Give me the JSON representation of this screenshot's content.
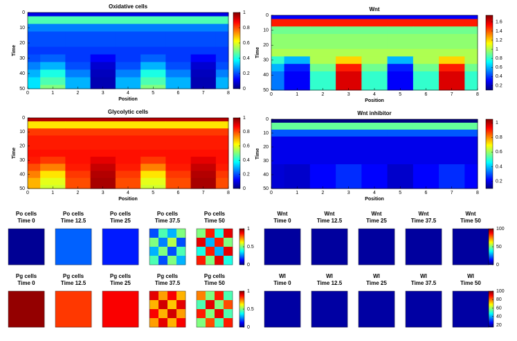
{
  "chart_data": [
    {
      "type": "heatmap",
      "title": "Oxidative cells",
      "xlabel": "Position",
      "ylabel": "Time",
      "colormap": "jet",
      "x": [
        0,
        1,
        2,
        3,
        4,
        5,
        6,
        7,
        8
      ],
      "y": [
        0,
        5,
        10,
        15,
        20,
        25,
        30,
        35,
        40,
        45,
        50
      ],
      "xlim": [
        0,
        8
      ],
      "ylim": [
        50,
        0
      ],
      "xticks": [
        0,
        1,
        2,
        3,
        4,
        5,
        6,
        7,
        8
      ],
      "yticks": [
        0,
        10,
        20,
        30,
        40,
        50
      ],
      "clim": [
        0,
        1
      ],
      "cticks": [
        0,
        0.2,
        0.4,
        0.6,
        0.8,
        1
      ],
      "z": [
        [
          0.1,
          0.1,
          0.1,
          0.1,
          0.1,
          0.1,
          0.1,
          0.1,
          0.1
        ],
        [
          0.45,
          0.45,
          0.45,
          0.45,
          0.45,
          0.45,
          0.45,
          0.45,
          0.45
        ],
        [
          0.25,
          0.25,
          0.25,
          0.25,
          0.25,
          0.25,
          0.25,
          0.25,
          0.25
        ],
        [
          0.2,
          0.2,
          0.2,
          0.2,
          0.2,
          0.2,
          0.2,
          0.2,
          0.2
        ],
        [
          0.2,
          0.2,
          0.2,
          0.2,
          0.2,
          0.2,
          0.2,
          0.2,
          0.2
        ],
        [
          0.18,
          0.18,
          0.18,
          0.18,
          0.18,
          0.18,
          0.18,
          0.18,
          0.18
        ],
        [
          0.2,
          0.22,
          0.18,
          0.12,
          0.18,
          0.22,
          0.18,
          0.12,
          0.18
        ],
        [
          0.25,
          0.3,
          0.2,
          0.08,
          0.2,
          0.3,
          0.2,
          0.08,
          0.2
        ],
        [
          0.3,
          0.4,
          0.25,
          0.06,
          0.25,
          0.4,
          0.25,
          0.06,
          0.25
        ],
        [
          0.35,
          0.45,
          0.3,
          0.05,
          0.3,
          0.45,
          0.3,
          0.05,
          0.3
        ],
        [
          0.35,
          0.5,
          0.3,
          0.05,
          0.3,
          0.5,
          0.3,
          0.05,
          0.3
        ]
      ]
    },
    {
      "type": "heatmap",
      "title": "Wnt",
      "xlabel": "Position",
      "ylabel": "Time",
      "colormap": "jet",
      "x": [
        0,
        1,
        2,
        3,
        4,
        5,
        6,
        7,
        8
      ],
      "y": [
        0,
        5,
        10,
        15,
        20,
        25,
        30,
        35,
        40,
        45,
        50
      ],
      "xlim": [
        0,
        8
      ],
      "ylim": [
        50,
        0
      ],
      "xticks": [
        0,
        1,
        2,
        3,
        4,
        5,
        6,
        7,
        8
      ],
      "yticks": [
        0,
        10,
        20,
        30,
        40,
        50
      ],
      "clim": [
        0.1,
        1.75
      ],
      "cticks": [
        0.2,
        0.4,
        0.6,
        0.8,
        1,
        1.2,
        1.4,
        1.6
      ],
      "z": [
        [
          0.3,
          0.3,
          0.3,
          0.3,
          0.3,
          0.3,
          0.3,
          0.3,
          0.3
        ],
        [
          1.5,
          1.5,
          1.5,
          1.5,
          1.5,
          1.5,
          1.5,
          1.5,
          1.5
        ],
        [
          0.9,
          0.9,
          0.9,
          0.9,
          0.9,
          0.9,
          0.9,
          0.9,
          0.9
        ],
        [
          0.95,
          0.95,
          0.95,
          0.95,
          0.95,
          0.95,
          0.95,
          0.95,
          0.95
        ],
        [
          0.95,
          0.95,
          0.95,
          0.95,
          0.95,
          0.95,
          0.95,
          0.95,
          0.95
        ],
        [
          1.0,
          1.0,
          1.0,
          1.0,
          1.0,
          1.0,
          1.0,
          1.0,
          1.0
        ],
        [
          0.8,
          0.6,
          1.0,
          1.2,
          1.0,
          0.6,
          1.0,
          1.2,
          1.0
        ],
        [
          0.6,
          0.35,
          0.9,
          1.5,
          0.9,
          0.35,
          0.9,
          1.5,
          0.9
        ],
        [
          0.5,
          0.3,
          0.8,
          1.6,
          0.8,
          0.3,
          0.8,
          1.6,
          0.8
        ],
        [
          0.5,
          0.3,
          0.8,
          1.6,
          0.8,
          0.3,
          0.8,
          1.6,
          0.8
        ],
        [
          0.5,
          0.3,
          0.8,
          1.6,
          0.8,
          0.3,
          0.8,
          1.6,
          0.8
        ]
      ]
    },
    {
      "type": "heatmap",
      "title": "Glycolytic cells",
      "xlabel": "Position",
      "ylabel": "Time",
      "colormap": "jet",
      "x": [
        0,
        1,
        2,
        3,
        4,
        5,
        6,
        7,
        8
      ],
      "y": [
        0,
        5,
        10,
        15,
        20,
        25,
        30,
        35,
        40,
        45,
        50
      ],
      "xlim": [
        0,
        8
      ],
      "ylim": [
        50,
        0
      ],
      "xticks": [
        0,
        1,
        2,
        3,
        4,
        5,
        6,
        7,
        8
      ],
      "yticks": [
        0,
        10,
        20,
        30,
        40,
        50
      ],
      "clim": [
        0,
        1
      ],
      "cticks": [
        0,
        0.2,
        0.4,
        0.6,
        0.8,
        1
      ],
      "z": [
        [
          0.95,
          0.95,
          0.95,
          0.95,
          0.95,
          0.95,
          0.95,
          0.95,
          0.95
        ],
        [
          0.65,
          0.65,
          0.65,
          0.65,
          0.65,
          0.65,
          0.65,
          0.65,
          0.65
        ],
        [
          0.82,
          0.82,
          0.82,
          0.82,
          0.82,
          0.82,
          0.82,
          0.82,
          0.82
        ],
        [
          0.85,
          0.85,
          0.85,
          0.85,
          0.85,
          0.85,
          0.85,
          0.85,
          0.85
        ],
        [
          0.85,
          0.85,
          0.85,
          0.85,
          0.85,
          0.85,
          0.85,
          0.85,
          0.85
        ],
        [
          0.86,
          0.86,
          0.86,
          0.86,
          0.86,
          0.86,
          0.86,
          0.86,
          0.86
        ],
        [
          0.85,
          0.82,
          0.86,
          0.9,
          0.86,
          0.82,
          0.86,
          0.9,
          0.86
        ],
        [
          0.8,
          0.75,
          0.85,
          0.93,
          0.85,
          0.75,
          0.85,
          0.93,
          0.85
        ],
        [
          0.75,
          0.65,
          0.82,
          0.95,
          0.82,
          0.65,
          0.82,
          0.95,
          0.82
        ],
        [
          0.7,
          0.6,
          0.8,
          0.96,
          0.8,
          0.6,
          0.8,
          0.96,
          0.8
        ],
        [
          0.7,
          0.58,
          0.8,
          0.96,
          0.8,
          0.58,
          0.8,
          0.96,
          0.8
        ]
      ]
    },
    {
      "type": "heatmap",
      "title": "Wnt inhibitor",
      "xlabel": "Position",
      "ylabel": "Time",
      "colormap": "jet",
      "x": [
        0,
        1,
        2,
        3,
        4,
        5,
        6,
        7,
        8
      ],
      "y": [
        0,
        5,
        10,
        15,
        20,
        25,
        30,
        35,
        40,
        45,
        50
      ],
      "xlim": [
        0,
        8
      ],
      "ylim": [
        50,
        0
      ],
      "xticks": [
        0,
        1,
        2,
        3,
        4,
        5,
        6,
        7,
        8
      ],
      "yticks": [
        0,
        10,
        20,
        30,
        40,
        50
      ],
      "clim": [
        0.1,
        1.05
      ],
      "cticks": [
        0.2,
        0.4,
        0.6,
        0.8,
        1
      ],
      "z": [
        [
          0.1,
          0.1,
          0.1,
          0.1,
          0.1,
          0.1,
          0.1,
          0.1,
          0.1
        ],
        [
          0.55,
          0.55,
          0.55,
          0.55,
          0.55,
          0.55,
          0.55,
          0.55,
          0.55
        ],
        [
          0.3,
          0.3,
          0.3,
          0.3,
          0.3,
          0.3,
          0.3,
          0.3,
          0.3
        ],
        [
          0.2,
          0.2,
          0.2,
          0.2,
          0.2,
          0.2,
          0.2,
          0.2,
          0.2
        ],
        [
          0.2,
          0.2,
          0.2,
          0.2,
          0.2,
          0.2,
          0.2,
          0.2,
          0.2
        ],
        [
          0.2,
          0.2,
          0.2,
          0.2,
          0.2,
          0.2,
          0.2,
          0.2,
          0.2
        ],
        [
          0.2,
          0.2,
          0.2,
          0.2,
          0.2,
          0.2,
          0.2,
          0.2,
          0.2
        ],
        [
          0.18,
          0.17,
          0.22,
          0.26,
          0.22,
          0.17,
          0.22,
          0.26,
          0.22
        ],
        [
          0.18,
          0.17,
          0.22,
          0.26,
          0.22,
          0.17,
          0.22,
          0.26,
          0.22
        ],
        [
          0.18,
          0.17,
          0.22,
          0.26,
          0.22,
          0.17,
          0.22,
          0.26,
          0.22
        ],
        [
          0.18,
          0.17,
          0.22,
          0.26,
          0.22,
          0.17,
          0.22,
          0.26,
          0.22
        ]
      ]
    },
    {
      "type": "heatmap-row",
      "colormap": "jet",
      "clim": [
        0,
        1
      ],
      "cticks": [
        0,
        0.5,
        1
      ],
      "panels": [
        {
          "title": [
            "Po cells",
            "Time 0"
          ],
          "z": [
            [
              0.02
            ]
          ]
        },
        {
          "title": [
            "Po cells",
            "Time 12.5"
          ],
          "z": [
            [
              0.22
            ]
          ]
        },
        {
          "title": [
            "Po cells",
            "Time 25"
          ],
          "z": [
            [
              0.15
            ]
          ]
        },
        {
          "title": [
            "Po cells",
            "Time 37.5"
          ],
          "z": [
            [
              0.2,
              0.45,
              0.3,
              0.5
            ],
            [
              0.5,
              0.25,
              0.55,
              0.2
            ],
            [
              0.3,
              0.5,
              0.2,
              0.45
            ],
            [
              0.45,
              0.2,
              0.5,
              0.3
            ]
          ]
        },
        {
          "title": [
            "Po cells",
            "Time 50"
          ],
          "z": [
            [
              0.5,
              0.85,
              0.4,
              0.9
            ],
            [
              0.9,
              0.3,
              0.85,
              0.5
            ],
            [
              0.4,
              0.85,
              0.3,
              0.9
            ],
            [
              0.85,
              0.5,
              0.9,
              0.4
            ]
          ]
        }
      ]
    },
    {
      "type": "heatmap-row",
      "colormap": "jet",
      "clim": [
        0,
        100
      ],
      "cticks": [
        0,
        50,
        100
      ],
      "panels": [
        {
          "title": [
            "Wnt",
            "Time 0"
          ],
          "z": [
            [
              3
            ]
          ]
        },
        {
          "title": [
            "Wnt",
            "Time 12.5"
          ],
          "z": [
            [
              3
            ]
          ]
        },
        {
          "title": [
            "Wnt",
            "Time 25"
          ],
          "z": [
            [
              3
            ]
          ]
        },
        {
          "title": [
            "Wnt",
            "Time 37.5"
          ],
          "z": [
            [
              3
            ]
          ]
        },
        {
          "title": [
            "Wnt",
            "Time 50"
          ],
          "z": [
            [
              3
            ]
          ]
        }
      ]
    },
    {
      "type": "heatmap-row",
      "colormap": "jet",
      "clim": [
        0,
        1
      ],
      "cticks": [
        0,
        0.5,
        1
      ],
      "panels": [
        {
          "title": [
            "Pg cells",
            "Time 0"
          ],
          "z": [
            [
              0.98
            ]
          ]
        },
        {
          "title": [
            "Pg cells",
            "Time 12.5"
          ],
          "z": [
            [
              0.82
            ]
          ]
        },
        {
          "title": [
            "Pg cells",
            "Time 25"
          ],
          "z": [
            [
              0.88
            ]
          ]
        },
        {
          "title": [
            "Pg cells",
            "Time 37.5"
          ],
          "z": [
            [
              0.9,
              0.72,
              0.88,
              0.7
            ],
            [
              0.7,
              0.92,
              0.68,
              0.9
            ],
            [
              0.88,
              0.7,
              0.92,
              0.72
            ],
            [
              0.72,
              0.9,
              0.7,
              0.88
            ]
          ]
        },
        {
          "title": [
            "Pg cells",
            "Time 50"
          ],
          "z": [
            [
              0.75,
              0.5,
              0.85,
              0.45
            ],
            [
              0.45,
              0.9,
              0.5,
              0.8
            ],
            [
              0.85,
              0.5,
              0.9,
              0.45
            ],
            [
              0.5,
              0.8,
              0.45,
              0.85
            ]
          ]
        }
      ]
    },
    {
      "type": "heatmap-row",
      "colormap": "jet",
      "clim": [
        15,
        100
      ],
      "cticks": [
        20,
        40,
        60,
        80,
        100
      ],
      "panels": [
        {
          "title": [
            "WI",
            "Time 0"
          ],
          "z": [
            [
              18
            ]
          ]
        },
        {
          "title": [
            "WI",
            "Time 12.5"
          ],
          "z": [
            [
              18
            ]
          ]
        },
        {
          "title": [
            "WI",
            "Time 25"
          ],
          "z": [
            [
              18
            ]
          ]
        },
        {
          "title": [
            "WI",
            "Time 37.5"
          ],
          "z": [
            [
              18
            ]
          ]
        },
        {
          "title": [
            "WI",
            "Time 50"
          ],
          "z": [
            [
              18
            ]
          ]
        }
      ]
    }
  ]
}
